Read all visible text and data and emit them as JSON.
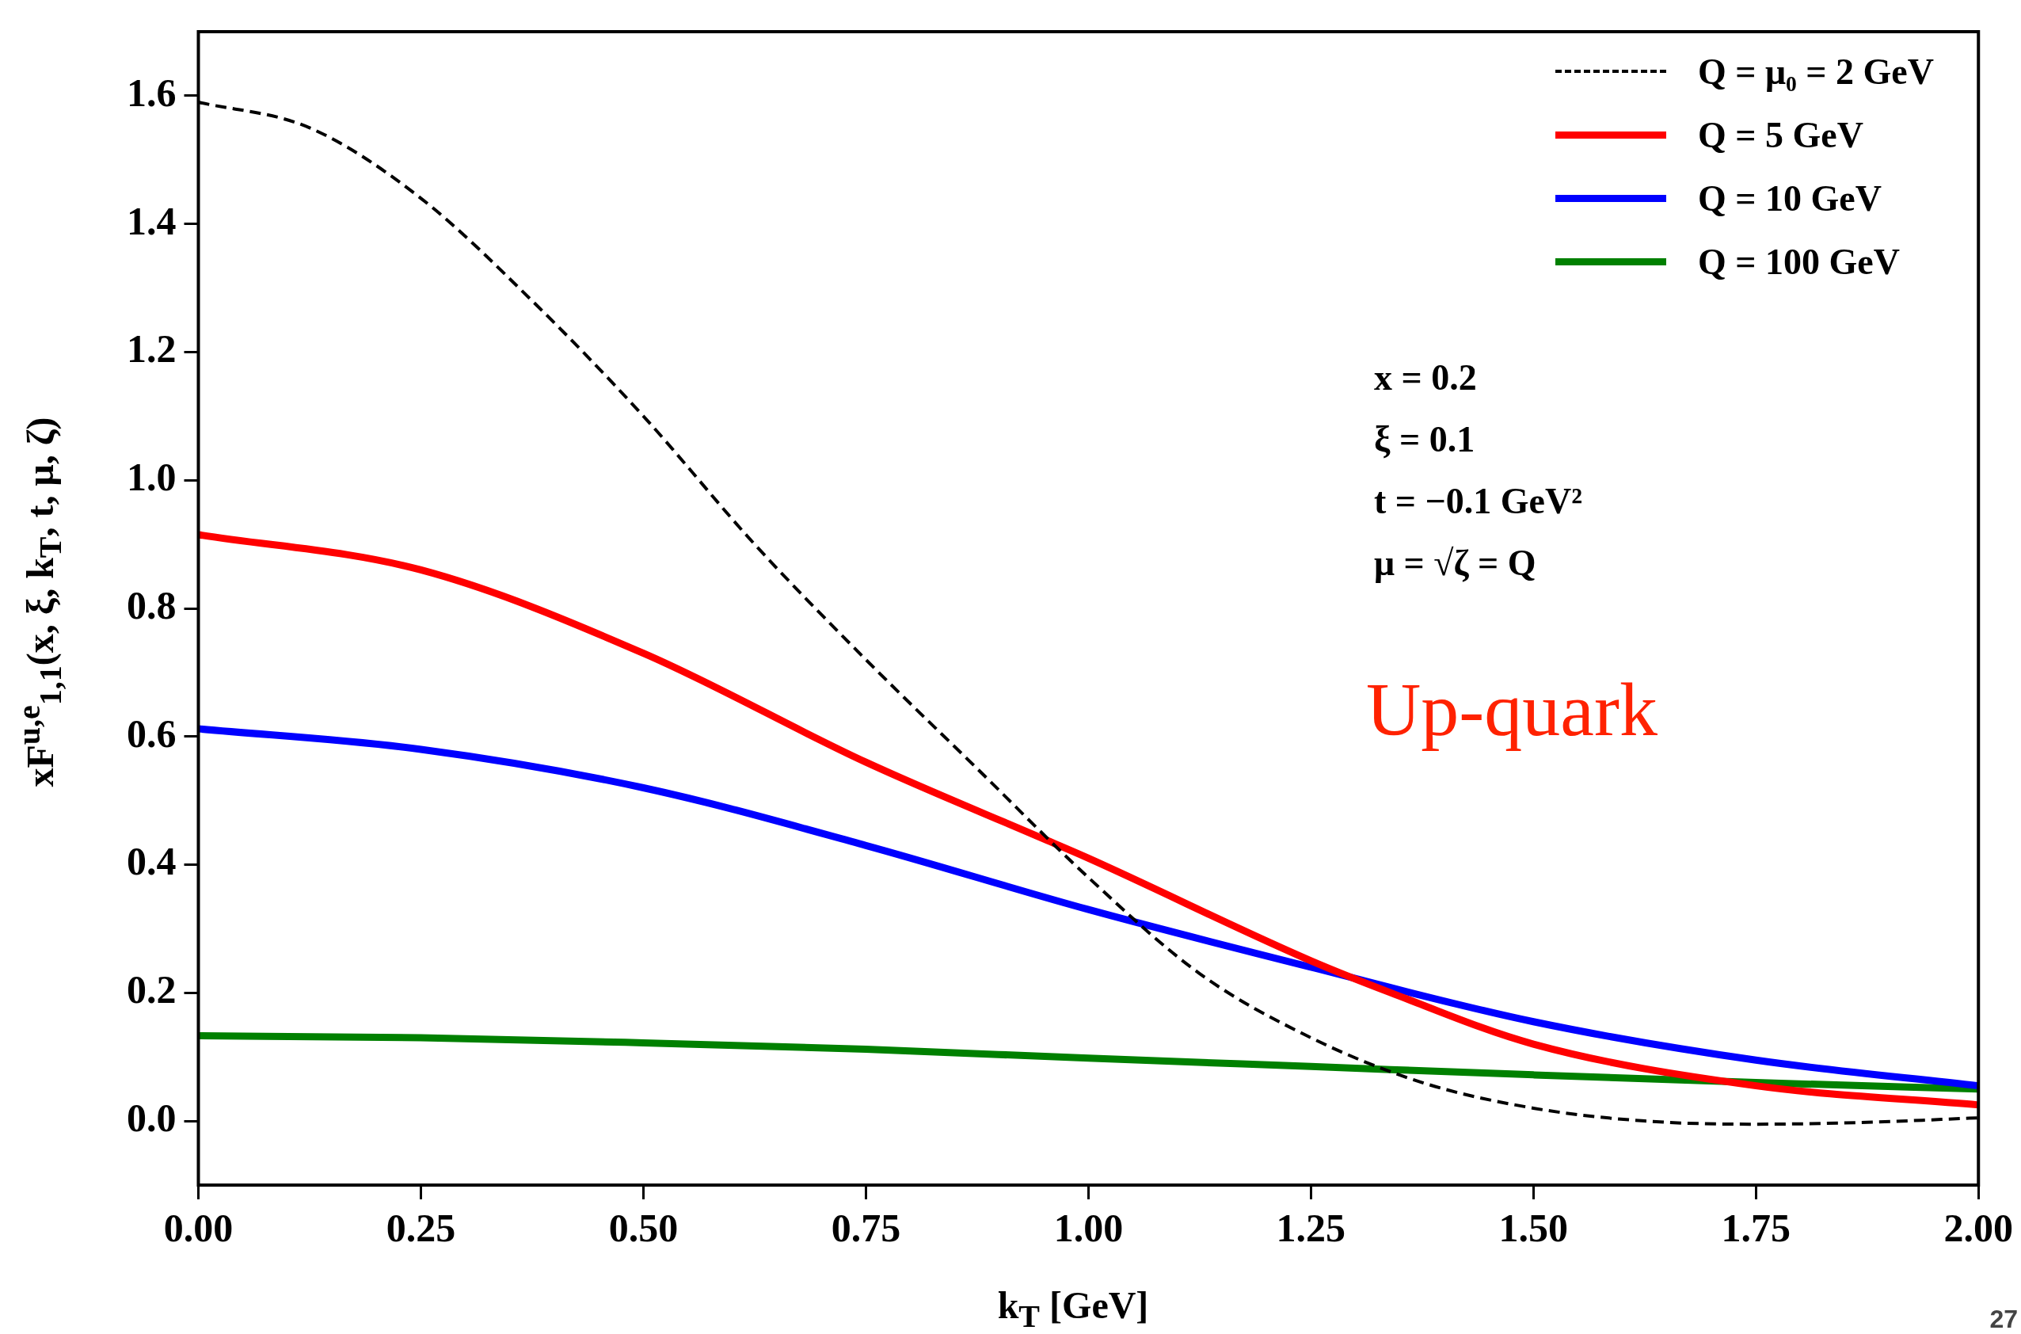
{
  "chart_data": {
    "type": "line",
    "xlabel": "k$_{T}$ [GeV]",
    "ylabel": "xF$^{u,e}$$_{1,1}$(x, ξ, k$_{T}$, t, μ, ζ)",
    "xlim": [
      0,
      2
    ],
    "ylim": [
      -0.1,
      1.7
    ],
    "xticks": [
      {
        "value": 0,
        "label": "0.00"
      },
      {
        "value": 0.25,
        "label": "0.25"
      },
      {
        "value": 0.5,
        "label": "0.50"
      },
      {
        "value": 0.75,
        "label": "0.75"
      },
      {
        "value": 1,
        "label": "1.00"
      },
      {
        "value": 1.25,
        "label": "1.25"
      },
      {
        "value": 1.5,
        "label": "1.50"
      },
      {
        "value": 1.75,
        "label": "1.75"
      },
      {
        "value": 2,
        "label": "2.00"
      }
    ],
    "yticks": [
      {
        "value": 0,
        "label": "0.0"
      },
      {
        "value": 0.2,
        "label": "0.2"
      },
      {
        "value": 0.4,
        "label": "0.4"
      },
      {
        "value": 0.6,
        "label": "0.6"
      },
      {
        "value": 0.8,
        "label": "0.8"
      },
      {
        "value": 1,
        "label": "1.0"
      },
      {
        "value": 1.2,
        "label": "1.2"
      },
      {
        "value": 1.4,
        "label": "1.4"
      },
      {
        "value": 1.6,
        "label": "1.6"
      }
    ],
    "grid": false,
    "legend": "top right",
    "marker": "none",
    "series": [
      {
        "name": "Q = μ₀ = 2 GeV",
        "color": "#000000",
        "line_style": "dashed",
        "x": [
          0,
          0.125,
          0.25,
          0.375,
          0.5,
          0.625,
          0.75,
          0.875,
          1,
          1.125,
          1.25,
          1.375,
          1.5,
          1.625,
          1.75,
          1.875,
          2
        ],
        "values": [
          1.59,
          1.55,
          1.44,
          1.28,
          1.1,
          0.9,
          0.72,
          0.55,
          0.38,
          0.23,
          0.13,
          0.06,
          0.02,
          0,
          -0.005,
          -0.002,
          0.005
        ]
      },
      {
        "name": "Q = 5 GeV",
        "color": "#ff0000",
        "x": [
          0,
          0.25,
          0.5,
          0.75,
          0.95,
          1,
          1.25,
          1.34,
          1.5,
          1.75,
          2
        ],
        "values": [
          0.915,
          0.86,
          0.73,
          0.56,
          0.44,
          0.41,
          0.25,
          0.2,
          0.12,
          0.055,
          0.025
        ]
      },
      {
        "name": "Q = 10 GeV",
        "color": "#0000ff",
        "x": [
          0,
          0.25,
          0.5,
          0.75,
          1,
          1.25,
          1.5,
          1.75,
          2
        ],
        "values": [
          0.612,
          0.58,
          0.52,
          0.43,
          0.33,
          0.24,
          0.155,
          0.095,
          0.055
        ]
      },
      {
        "name": "Q = 100 GeV",
        "color": "#008000",
        "x": [
          0,
          0.25,
          0.5,
          0.75,
          1,
          1.25,
          1.5,
          1.75,
          2
        ],
        "values": [
          0.133,
          0.13,
          0.122,
          0.112,
          0.098,
          0.085,
          0.072,
          0.06,
          0.05
        ]
      }
    ],
    "annotations": [
      "x = 0.2",
      "ξ = 0.1",
      "t = −0.1 GeV²",
      "μ = √ζ = Q",
      "Up-quark",
      "27"
    ]
  }
}
